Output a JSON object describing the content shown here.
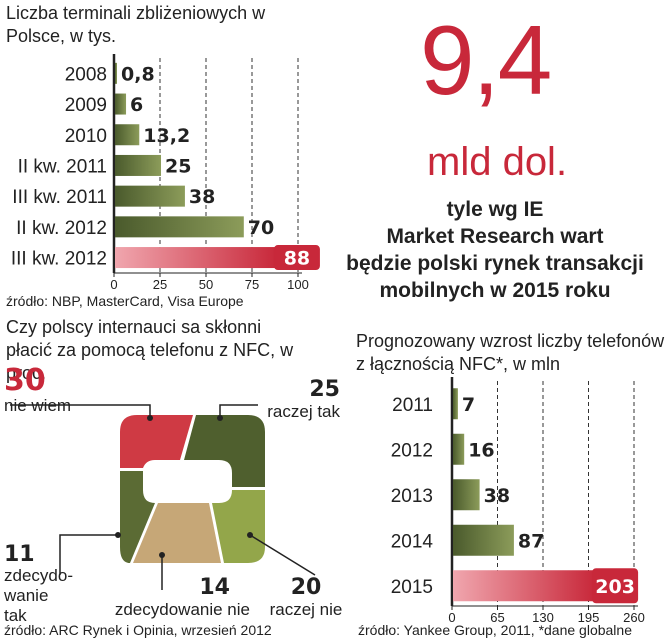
{
  "chart_data": [
    {
      "type": "bar",
      "orientation": "horizontal",
      "title": "Liczba terminali zbliżeniowych w Polsce, w tys.",
      "categories": [
        "2008",
        "2009",
        "2010",
        "II kw. 2011",
        "III kw. 2011",
        "II kw. 2012",
        "III kw. 2012"
      ],
      "values": [
        0.8,
        6,
        13.2,
        25,
        38,
        70,
        88
      ],
      "value_labels": [
        "0,8",
        "6",
        "13,2",
        "25",
        "38",
        "70",
        "88"
      ],
      "highlight_index": 6,
      "xlim": [
        0,
        100
      ],
      "ticks": [
        0,
        25,
        50,
        75,
        100
      ],
      "source": "źródło: NBP, MasterCard, Visa Europe"
    },
    {
      "type": "pie",
      "title": "Czy polscy internauci sa skłonni płacić za pomocą telefonu z NFC, w proc.",
      "segments": [
        {
          "label": "nie wiem",
          "value": 30
        },
        {
          "label": "raczej tak",
          "value": 25
        },
        {
          "label": "raczej nie",
          "value": 20
        },
        {
          "label": "zdecydowanie nie",
          "value": 14
        },
        {
          "label": "zdecydowanie tak",
          "label_display": [
            "zdecydo-",
            "wanie",
            "tak"
          ],
          "value": 11
        }
      ],
      "source": "źródło: ARC Rynek i Opinia, wrzesień 2012"
    },
    {
      "type": "bar",
      "orientation": "horizontal",
      "title": "Prognozowany wzrost liczby telefonów z łącznością NFC*, w mln",
      "categories": [
        "2011",
        "2012",
        "2013",
        "2014",
        "2015"
      ],
      "values": [
        7,
        16,
        38,
        87,
        203
      ],
      "value_labels": [
        "7",
        "16",
        "38",
        "87",
        "203"
      ],
      "highlight_index": 4,
      "xlim": [
        0,
        260
      ],
      "ticks": [
        0,
        65,
        130,
        195,
        260
      ],
      "source": "źródło: Yankee Group, 2011, *dane globalne"
    }
  ],
  "headline": {
    "number": "9,4",
    "unit": "mld dol.",
    "text": [
      "tyle wg IE",
      "Market Research wart",
      "będzie polski rynek transakcji",
      "mobilnych w 2015 roku"
    ]
  },
  "colors": {
    "accent": "#c8283a",
    "bar_dark": "#4a5a2c",
    "bar_light": "#8c9c5a",
    "pie_red": "#cf3a44",
    "pie_dark_green": "#4a5a2c",
    "pie_light_green": "#93a64a",
    "pie_tan": "#c6a777",
    "pie_olive": "#5b6b34"
  }
}
